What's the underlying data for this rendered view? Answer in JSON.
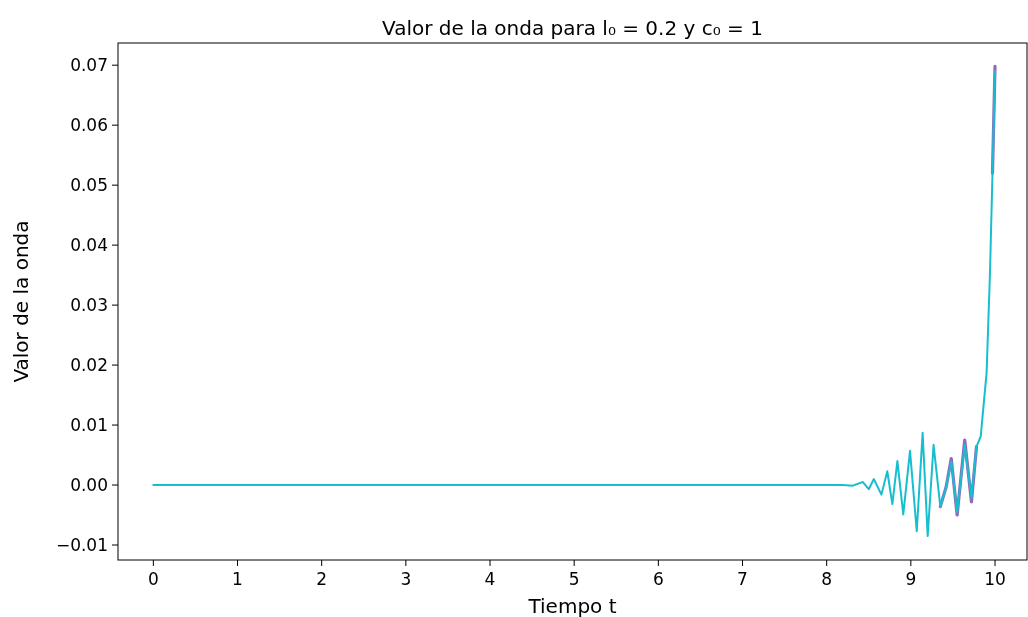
{
  "chart_data": {
    "type": "line",
    "title": "Valor de la onda para l₀ = 0.2 y c₀ = 1",
    "xlabel": "Tiempo t",
    "ylabel": "Valor de la onda",
    "xlim": [
      -0.42,
      10.38
    ],
    "xticks": [
      0,
      1,
      2,
      3,
      4,
      5,
      6,
      7,
      8,
      9,
      10
    ],
    "ylim": [
      -0.0125,
      0.0737
    ],
    "yticks": [
      {
        "value": -0.01,
        "label": "−0.01"
      },
      {
        "value": 0,
        "label": "0.00"
      },
      {
        "value": 0.01,
        "label": "0.01"
      },
      {
        "value": 0.02,
        "label": "0.02"
      },
      {
        "value": 0.03,
        "label": "0.03"
      },
      {
        "value": 0.04,
        "label": "0.04"
      },
      {
        "value": 0.05,
        "label": "0.05"
      },
      {
        "value": 0.06,
        "label": "0.06"
      },
      {
        "value": 0.07,
        "label": "0.07"
      }
    ],
    "grid": false,
    "x": [
      0,
      8.19,
      8.31,
      8.43,
      8.5,
      8.56,
      8.65,
      8.72,
      8.78,
      8.84,
      8.91,
      8.99,
      9.07,
      9.14,
      9.2,
      9.27,
      9.35,
      9.42,
      9.48,
      9.55,
      9.64,
      9.72,
      9.78,
      9.83,
      9.87,
      9.9,
      9.94,
      9.97,
      10.0
    ],
    "series": [
      {
        "color": "#9467bd",
        "values": [
          null,
          null,
          null,
          null,
          null,
          null,
          null,
          null,
          null,
          null,
          null,
          null,
          null,
          null,
          null,
          null,
          -0.0036,
          -0.0003,
          0.0044,
          -0.005,
          0.0075,
          -0.0028,
          0.0064,
          null,
          null,
          null,
          null,
          0.052,
          0.0698
        ]
      },
      {
        "color": "#17becf",
        "values": [
          0,
          0,
          -0.0001,
          0.0005,
          -0.0007,
          0.001,
          -0.0016,
          0.0023,
          -0.0032,
          0.004,
          -0.0049,
          0.0057,
          -0.0077,
          0.0087,
          -0.0085,
          0.0067,
          -0.0036,
          -0.0003,
          0.0039,
          -0.0045,
          0.0067,
          -0.0022,
          0.0064,
          0.0081,
          0.0142,
          0.0187,
          0.0353,
          0.052,
          0.069
        ]
      }
    ]
  }
}
